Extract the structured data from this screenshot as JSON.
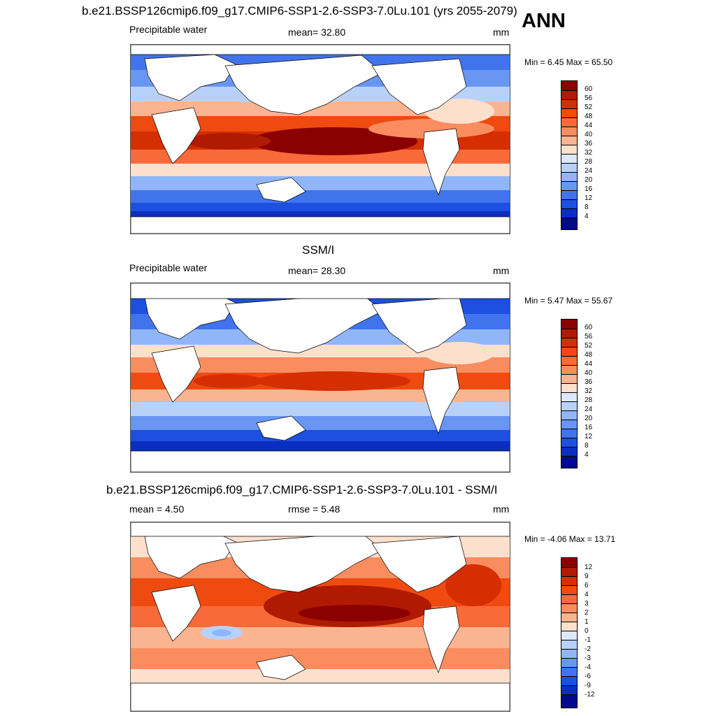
{
  "run_title": "b.e21.BSSP126cmip6.f09_g17.CMIP6-SSP1-2.6-SSP3-7.0Lu.101 (yrs 2055-2079)",
  "season": "ANN",
  "panels": [
    {
      "id": "model",
      "heading": "",
      "left_label": "Precipitable water",
      "center_label": "mean=  32.80",
      "units": "mm",
      "minmax": "Min =   6.45 Max =  65.50"
    },
    {
      "id": "obs",
      "heading": "SSM/I",
      "left_label": "Precipitable water",
      "center_label": "mean=  28.30",
      "units": "mm",
      "minmax": "Min =   5.47 Max =  55.67"
    },
    {
      "id": "diff",
      "heading": "b.e21.BSSP126cmip6.f09_g17.CMIP6-SSP1-2.6-SSP3-7.0Lu.101 - SSM/I",
      "left_label": "mean =   4.50",
      "center_label": "rmse =   5.48",
      "units": "mm",
      "minmax": "Min =  -4.06 Max =  13.71"
    }
  ],
  "colorbars": {
    "abs": {
      "labels": [
        "60",
        "56",
        "52",
        "48",
        "44",
        "40",
        "36",
        "32",
        "28",
        "24",
        "20",
        "16",
        "12",
        "8",
        "4"
      ],
      "colors": [
        "#8b0000",
        "#b01a00",
        "#d52e00",
        "#ef4a10",
        "#f86a3a",
        "#f98d60",
        "#fbb490",
        "#fde0cc",
        "#dde9fb",
        "#b8d1fb",
        "#90b6f9",
        "#6896f2",
        "#4174ec",
        "#1d4fe0",
        "#0a2fc0",
        "#000a8c"
      ]
    },
    "diff": {
      "labels": [
        "12",
        "9",
        "6",
        "4",
        "3",
        "2",
        "1",
        "0",
        "-1",
        "-2",
        "-3",
        "-4",
        "-6",
        "-9",
        "-12"
      ],
      "colors": [
        "#8b0000",
        "#b01a00",
        "#d52e00",
        "#ef4a10",
        "#f86a3a",
        "#f98d60",
        "#fbb490",
        "#fde0cc",
        "#dde9fb",
        "#b8d1fb",
        "#90b6f9",
        "#6896f2",
        "#4174ec",
        "#1d4fe0",
        "#0a2fc0",
        "#000a8c"
      ]
    }
  },
  "map_description_colors": {
    "land": "#ffffff",
    "coast": "#000000",
    "tropics_max": "#8b0000",
    "polar_min": "#000a8c"
  }
}
